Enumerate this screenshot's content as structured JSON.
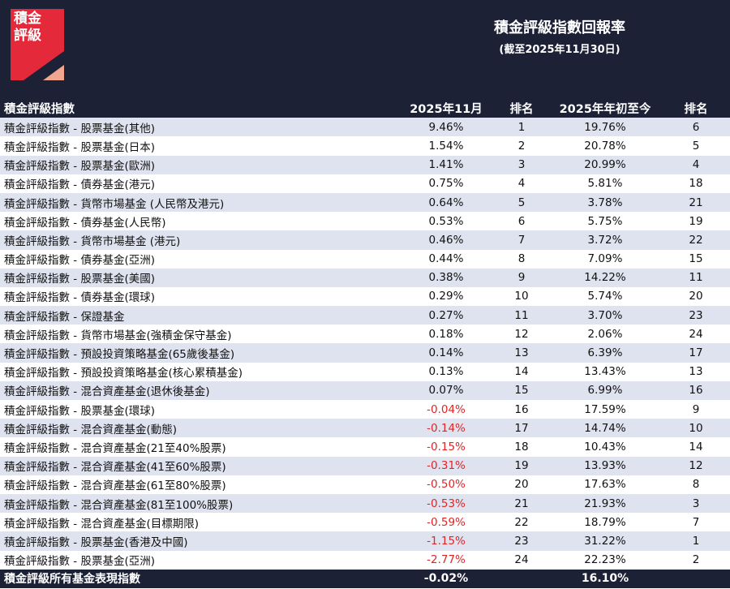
{
  "colors": {
    "navy": "#1c2136",
    "stripe": "#dfe3f0",
    "negative": "#e32424",
    "logo_red": "#e3293a",
    "logo_salmon": "#f2a58f"
  },
  "logo": {
    "line1": "積金",
    "line2": "評級"
  },
  "header": {
    "title": "積金評級指數回報率",
    "subtitle": "(截至2025年11月30日)"
  },
  "columns": {
    "name": "積金評級指數",
    "month": "2025年11月",
    "rank1": "排名",
    "ytd": "2025年年初至今",
    "rank2": "排名"
  },
  "rows": [
    {
      "name": "積金評級指數 - 股票基金(其他)",
      "month": "9.46%",
      "rank1": "1",
      "ytd": "19.76%",
      "rank2": "6"
    },
    {
      "name": "積金評級指數 - 股票基金(日本)",
      "month": "1.54%",
      "rank1": "2",
      "ytd": "20.78%",
      "rank2": "5"
    },
    {
      "name": "積金評級指數 - 股票基金(歐洲)",
      "month": "1.41%",
      "rank1": "3",
      "ytd": "20.99%",
      "rank2": "4"
    },
    {
      "name": "積金評級指數 - 債券基金(港元)",
      "month": "0.75%",
      "rank1": "4",
      "ytd": "5.81%",
      "rank2": "18"
    },
    {
      "name": "積金評級指數 - 貨幣市場基金 (人民幣及港元)",
      "month": "0.64%",
      "rank1": "5",
      "ytd": "3.78%",
      "rank2": "21"
    },
    {
      "name": "積金評級指數 - 債券基金(人民幣)",
      "month": "0.53%",
      "rank1": "6",
      "ytd": "5.75%",
      "rank2": "19"
    },
    {
      "name": "積金評級指數 - 貨幣市場基金 (港元)",
      "month": "0.46%",
      "rank1": "7",
      "ytd": "3.72%",
      "rank2": "22"
    },
    {
      "name": "積金評級指數 - 債券基金(亞洲)",
      "month": "0.44%",
      "rank1": "8",
      "ytd": "7.09%",
      "rank2": "15"
    },
    {
      "name": "積金評級指數 - 股票基金(美國)",
      "month": "0.38%",
      "rank1": "9",
      "ytd": "14.22%",
      "rank2": "11"
    },
    {
      "name": "積金評級指數 - 債券基金(環球)",
      "month": "0.29%",
      "rank1": "10",
      "ytd": "5.74%",
      "rank2": "20"
    },
    {
      "name": "積金評級指數 - 保證基金",
      "month": "0.27%",
      "rank1": "11",
      "ytd": "3.70%",
      "rank2": "23"
    },
    {
      "name": "積金評級指數 - 貨幣市場基金(強積金保守基金)",
      "month": "0.18%",
      "rank1": "12",
      "ytd": "2.06%",
      "rank2": "24"
    },
    {
      "name": "積金評級指數 - 預設投資策略基金(65歲後基金)",
      "month": "0.14%",
      "rank1": "13",
      "ytd": "6.39%",
      "rank2": "17"
    },
    {
      "name": "積金評級指數 - 預設投資策略基金(核心累積基金)",
      "month": "0.13%",
      "rank1": "14",
      "ytd": "13.43%",
      "rank2": "13"
    },
    {
      "name": "積金評級指數 - 混合資產基金(退休後基金)",
      "month": "0.07%",
      "rank1": "15",
      "ytd": "6.99%",
      "rank2": "16"
    },
    {
      "name": "積金評級指數 - 股票基金(環球)",
      "month": "-0.04%",
      "rank1": "16",
      "ytd": "17.59%",
      "rank2": "9"
    },
    {
      "name": "積金評級指數 - 混合資產基金(動態)",
      "month": "-0.14%",
      "rank1": "17",
      "ytd": "14.74%",
      "rank2": "10"
    },
    {
      "name": "積金評級指數 - 混合資產基金(21至40%股票)",
      "month": "-0.15%",
      "rank1": "18",
      "ytd": "10.43%",
      "rank2": "14"
    },
    {
      "name": "積金評級指數 - 混合資產基金(41至60%股票)",
      "month": "-0.31%",
      "rank1": "19",
      "ytd": "13.93%",
      "rank2": "12"
    },
    {
      "name": "積金評級指數 - 混合資產基金(61至80%股票)",
      "month": "-0.50%",
      "rank1": "20",
      "ytd": "17.63%",
      "rank2": "8"
    },
    {
      "name": "積金評級指數 - 混合資產基金(81至100%股票)",
      "month": "-0.53%",
      "rank1": "21",
      "ytd": "21.93%",
      "rank2": "3"
    },
    {
      "name": "積金評級指數 - 混合資產基金(目標期限)",
      "month": "-0.59%",
      "rank1": "22",
      "ytd": "18.79%",
      "rank2": "7"
    },
    {
      "name": "積金評級指數 - 股票基金(香港及中國)",
      "month": "-1.15%",
      "rank1": "23",
      "ytd": "31.22%",
      "rank2": "1"
    },
    {
      "name": "積金評級指數 - 股票基金(亞洲)",
      "month": "-2.77%",
      "rank1": "24",
      "ytd": "22.23%",
      "rank2": "2"
    }
  ],
  "footer": {
    "name": "積金評級所有基金表現指數",
    "month": "-0.02%",
    "rank1": "",
    "ytd": "16.10%",
    "rank2": ""
  }
}
